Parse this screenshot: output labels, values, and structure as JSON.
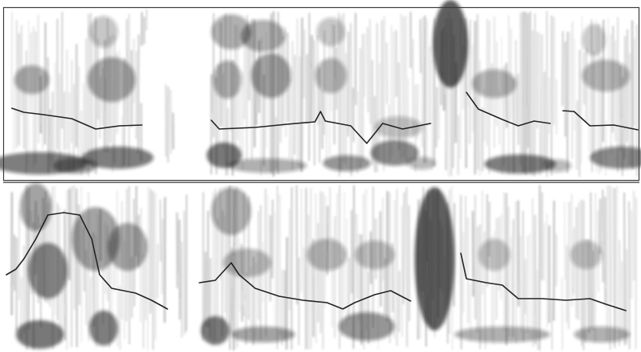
{
  "figure": {
    "panels": [
      {
        "name": "upper-spectrogram",
        "segments": 6,
        "has_pitch_contour": true
      },
      {
        "name": "lower-spectrogram",
        "segments": 6,
        "has_pitch_contour": true
      }
    ]
  },
  "colors": {
    "background": "#ffffff",
    "ink": "#1a1a1a",
    "contour": "#222222",
    "frame": "#3a3a3a",
    "divider": "#555555"
  }
}
